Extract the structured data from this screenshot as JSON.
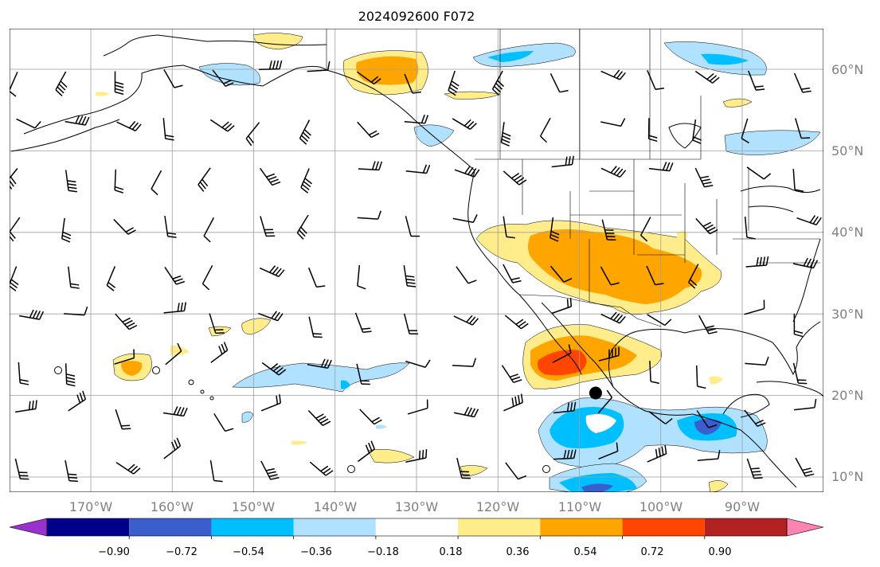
{
  "title": "2024092600 F072",
  "map": {
    "lon_labels": [
      "170°W",
      "160°W",
      "150°W",
      "140°W",
      "130°W",
      "120°W",
      "110°W",
      "100°W",
      "90°W"
    ],
    "lat_labels": [
      "60°N",
      "50°N",
      "40°N",
      "30°N",
      "20°N",
      "10°N"
    ],
    "marker": {
      "label": "",
      "lon": -108,
      "lat": 20.3
    }
  },
  "colorbar": {
    "ticks": [
      "−0.90",
      "−0.72",
      "−0.54",
      "−0.36",
      "−0.18",
      "0.18",
      "0.36",
      "0.54",
      "0.72",
      "0.90"
    ],
    "colors": [
      "#9932cc",
      "#00008b",
      "#3a5fcd",
      "#00bfff",
      "#b0e2ff",
      "#ffffff",
      "#ffec8b",
      "#ffa500",
      "#ff4500",
      "#b22222",
      "#ff83b0"
    ],
    "extend": "both"
  },
  "colors": {
    "grid": "#9e9e9e",
    "land": "#000000",
    "background": "#ffffff"
  }
}
